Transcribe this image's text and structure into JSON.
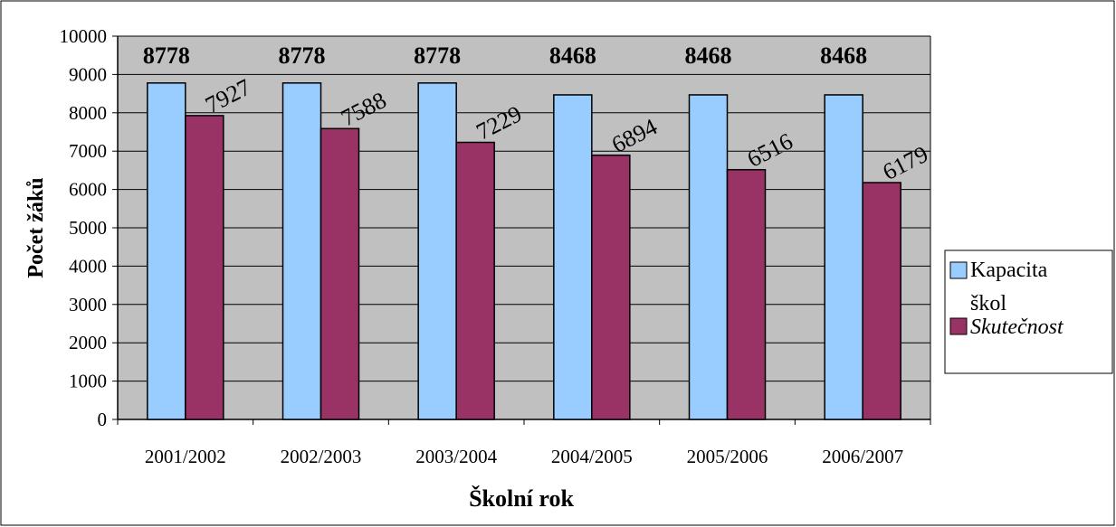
{
  "chart_data": {
    "type": "bar",
    "categories": [
      "2001/2002",
      "2002/2003",
      "2003/2004",
      "2004/2005",
      "2005/2006",
      "2006/2007"
    ],
    "series": [
      {
        "name": "Kapacita škol",
        "values": [
          8778,
          8778,
          8778,
          8468,
          8468,
          8468
        ],
        "color": "#99ccff",
        "label_style": "bold"
      },
      {
        "name": "Skutečnost",
        "values": [
          7927,
          7588,
          7229,
          6894,
          6516,
          6179
        ],
        "color": "#993366",
        "label_style": "rotated"
      }
    ],
    "xlabel": "Školní rok",
    "ylabel": "Počet žáků",
    "ylim": [
      0,
      10000
    ],
    "yticks": [
      0,
      1000,
      2000,
      3000,
      4000,
      5000,
      6000,
      7000,
      8000,
      9000,
      10000
    ],
    "grid": true,
    "plot_background": "#c0c0c0",
    "legend": {
      "position": "right",
      "entries": [
        {
          "line1": "Kapacita",
          "line2": "škol",
          "italic": false
        },
        {
          "line1": "Skutečnost",
          "line2": "",
          "italic": true
        }
      ]
    }
  }
}
